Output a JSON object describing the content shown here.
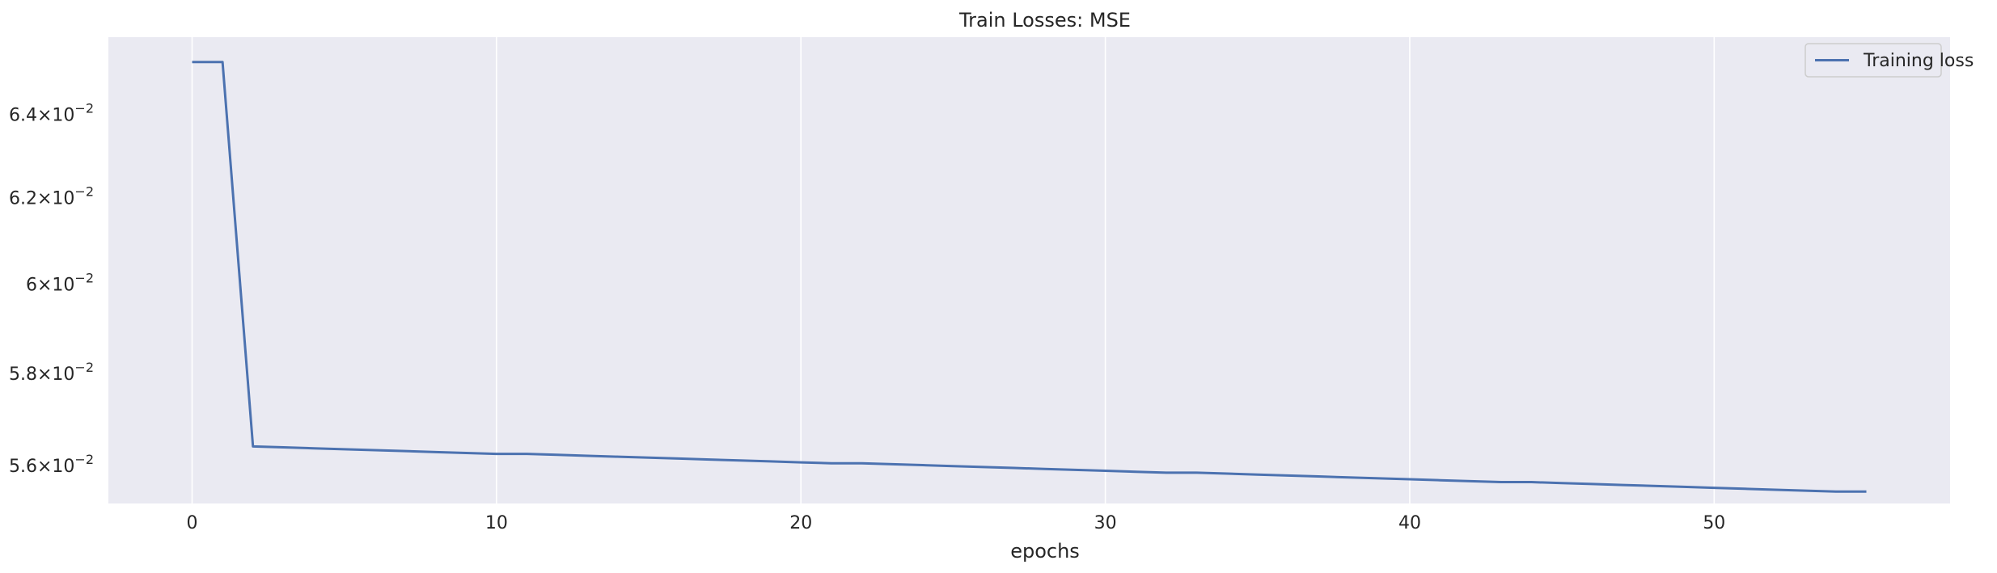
{
  "chart_data": {
    "type": "line",
    "title": "Train Losses:  MSE",
    "xlabel": "epochs",
    "ylabel": "",
    "xlim": [
      -2.75,
      57.75
    ],
    "ylim": [
      0.0552,
      0.0659
    ],
    "yscale": "log",
    "grid": "x-only",
    "legend_position": "top-right",
    "x_ticks": [
      {
        "value": 0,
        "label": "0"
      },
      {
        "value": 10,
        "label": "10"
      },
      {
        "value": 20,
        "label": "20"
      },
      {
        "value": 30,
        "label": "30"
      },
      {
        "value": 40,
        "label": "40"
      },
      {
        "value": 50,
        "label": "50"
      }
    ],
    "y_ticks": [
      {
        "value": 0.064,
        "mantissa": "6.4",
        "base": "10",
        "exponent": "-2"
      },
      {
        "value": 0.062,
        "mantissa": "6.2",
        "base": "10",
        "exponent": "-2"
      },
      {
        "value": 0.06,
        "mantissa": "6",
        "base": "10",
        "exponent": "-2"
      },
      {
        "value": 0.058,
        "mantissa": "5.8",
        "base": "10",
        "exponent": "-2"
      },
      {
        "value": 0.056,
        "mantissa": "5.6",
        "base": "10",
        "exponent": "-2"
      }
    ],
    "series": [
      {
        "name": "Training loss",
        "color": "#4c72b0",
        "x": [
          0,
          1,
          2,
          3,
          4,
          5,
          6,
          7,
          8,
          9,
          10,
          11,
          12,
          13,
          14,
          15,
          16,
          17,
          18,
          19,
          20,
          21,
          22,
          23,
          24,
          25,
          26,
          27,
          28,
          29,
          30,
          31,
          32,
          33,
          34,
          35,
          36,
          37,
          38,
          39,
          40,
          41,
          42,
          43,
          44,
          45,
          46,
          47,
          48,
          49,
          50,
          51,
          52,
          53,
          54,
          55
        ],
        "y": [
          0.06528,
          0.06528,
          0.05641,
          0.05639,
          0.05637,
          0.05635,
          0.05633,
          0.05631,
          0.05629,
          0.05627,
          0.05625,
          0.05625,
          0.05623,
          0.05621,
          0.05619,
          0.05617,
          0.05615,
          0.05613,
          0.05611,
          0.05609,
          0.05607,
          0.05605,
          0.05605,
          0.05603,
          0.05601,
          0.05599,
          0.05597,
          0.05595,
          0.05593,
          0.05591,
          0.05589,
          0.05587,
          0.05585,
          0.05585,
          0.05583,
          0.05581,
          0.05579,
          0.05577,
          0.05575,
          0.05573,
          0.05571,
          0.05569,
          0.05567,
          0.05565,
          0.05565,
          0.05563,
          0.05561,
          0.05559,
          0.05557,
          0.05555,
          0.05553,
          0.05551,
          0.05549,
          0.05547,
          0.05545,
          0.05545
        ]
      }
    ]
  },
  "colors": {
    "plot_background": "#eaeaf2",
    "grid": "#ffffff",
    "text": "#262626"
  }
}
